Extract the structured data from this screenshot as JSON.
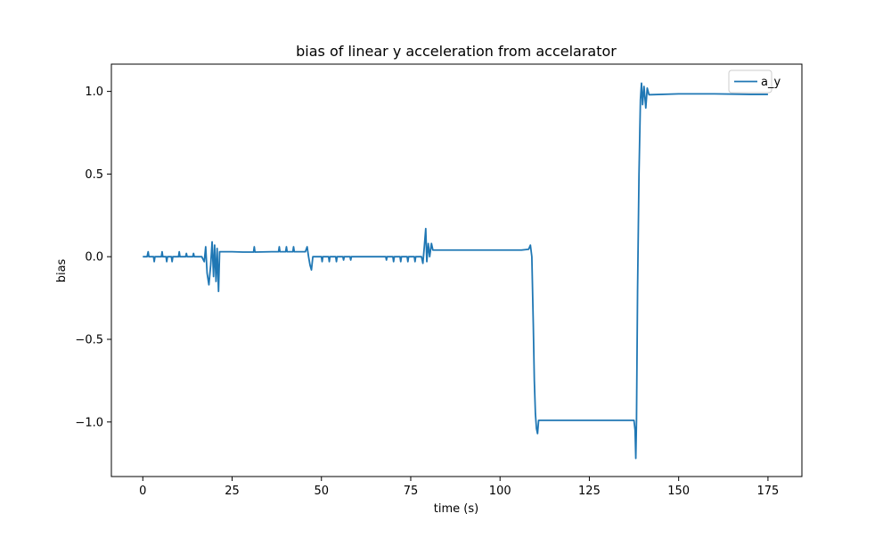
{
  "chart_data": {
    "type": "line",
    "title": "bias of linear y acceleration from accelarator",
    "xlabel": "time (s)",
    "ylabel": "bias",
    "xlim": [
      -8.8,
      184.5
    ],
    "ylim": [
      -1.33,
      1.165
    ],
    "x_ticks": [
      0,
      25,
      50,
      75,
      100,
      125,
      150,
      175
    ],
    "x_tick_labels": [
      "0",
      "25",
      "50",
      "75",
      "100",
      "125",
      "150",
      "175"
    ],
    "y_ticks": [
      -1.0,
      -0.5,
      0.0,
      0.5,
      1.0
    ],
    "y_tick_labels": [
      "−1.0",
      "−0.5",
      "0.0",
      "0.5",
      "1.0"
    ],
    "grid": false,
    "legend_position": "upper right",
    "series": [
      {
        "name": "a_y",
        "color": "#1f77b4",
        "points": [
          [
            0.0,
            0.0
          ],
          [
            1.2,
            0.0
          ],
          [
            1.5,
            0.03
          ],
          [
            1.7,
            0.0
          ],
          [
            3.0,
            0.0
          ],
          [
            3.2,
            -0.03
          ],
          [
            3.4,
            0.0
          ],
          [
            5.2,
            0.0
          ],
          [
            5.4,
            0.03
          ],
          [
            5.6,
            0.0
          ],
          [
            6.5,
            0.0
          ],
          [
            6.7,
            -0.03
          ],
          [
            6.9,
            0.0
          ],
          [
            8.0,
            0.0
          ],
          [
            8.2,
            -0.03
          ],
          [
            8.4,
            0.0
          ],
          [
            10.0,
            0.0
          ],
          [
            10.2,
            0.03
          ],
          [
            10.4,
            0.0
          ],
          [
            12.0,
            0.0
          ],
          [
            12.2,
            0.02
          ],
          [
            12.4,
            0.0
          ],
          [
            14.0,
            0.0
          ],
          [
            14.2,
            0.02
          ],
          [
            14.4,
            0.0
          ],
          [
            16.5,
            0.0
          ],
          [
            17.2,
            -0.03
          ],
          [
            17.6,
            0.06
          ],
          [
            18.0,
            -0.1
          ],
          [
            18.5,
            -0.17
          ],
          [
            19.0,
            -0.05
          ],
          [
            19.4,
            0.09
          ],
          [
            19.8,
            -0.12
          ],
          [
            20.1,
            0.07
          ],
          [
            20.5,
            -0.15
          ],
          [
            20.8,
            0.05
          ],
          [
            21.2,
            -0.21
          ],
          [
            21.5,
            0.03
          ],
          [
            22.0,
            0.03
          ],
          [
            25.0,
            0.03
          ],
          [
            28.0,
            0.028
          ],
          [
            31.0,
            0.028
          ],
          [
            31.2,
            0.06
          ],
          [
            31.4,
            0.028
          ],
          [
            36.0,
            0.03
          ],
          [
            38.0,
            0.03
          ],
          [
            38.2,
            0.06
          ],
          [
            38.4,
            0.03
          ],
          [
            40.0,
            0.03
          ],
          [
            40.2,
            0.06
          ],
          [
            40.4,
            0.03
          ],
          [
            42.0,
            0.03
          ],
          [
            42.2,
            0.06
          ],
          [
            42.4,
            0.03
          ],
          [
            45.5,
            0.03
          ],
          [
            46.0,
            0.06
          ],
          [
            46.4,
            0.0
          ],
          [
            46.8,
            -0.05
          ],
          [
            47.2,
            -0.08
          ],
          [
            47.6,
            0.0
          ],
          [
            48.0,
            0.0
          ],
          [
            50.0,
            0.0
          ],
          [
            50.2,
            -0.03
          ],
          [
            50.4,
            0.0
          ],
          [
            52.0,
            0.0
          ],
          [
            52.2,
            -0.03
          ],
          [
            52.4,
            0.0
          ],
          [
            54.0,
            0.0
          ],
          [
            54.2,
            -0.03
          ],
          [
            54.4,
            0.0
          ],
          [
            56.0,
            0.0
          ],
          [
            56.2,
            -0.02
          ],
          [
            56.4,
            0.0
          ],
          [
            58.0,
            0.0
          ],
          [
            58.2,
            -0.02
          ],
          [
            58.4,
            0.0
          ],
          [
            60.0,
            0.0
          ],
          [
            68.0,
            0.0
          ],
          [
            68.2,
            -0.02
          ],
          [
            68.4,
            0.0
          ],
          [
            70.0,
            0.0
          ],
          [
            70.2,
            -0.03
          ],
          [
            70.4,
            0.0
          ],
          [
            72.0,
            0.0
          ],
          [
            72.2,
            -0.03
          ],
          [
            72.4,
            0.0
          ],
          [
            74.0,
            0.0
          ],
          [
            74.2,
            -0.03
          ],
          [
            74.4,
            0.0
          ],
          [
            76.0,
            0.0
          ],
          [
            76.2,
            -0.03
          ],
          [
            76.4,
            0.0
          ],
          [
            78.0,
            0.0
          ],
          [
            78.4,
            -0.04
          ],
          [
            78.8,
            0.06
          ],
          [
            79.2,
            0.17
          ],
          [
            79.5,
            -0.03
          ],
          [
            79.9,
            0.08
          ],
          [
            80.3,
            0.0
          ],
          [
            80.8,
            0.08
          ],
          [
            81.2,
            0.04
          ],
          [
            82.0,
            0.04
          ],
          [
            90.0,
            0.04
          ],
          [
            100.0,
            0.04
          ],
          [
            106.0,
            0.04
          ],
          [
            108.0,
            0.045
          ],
          [
            108.5,
            0.07
          ],
          [
            108.9,
            0.0
          ],
          [
            109.3,
            -0.4
          ],
          [
            109.6,
            -0.75
          ],
          [
            109.9,
            -0.95
          ],
          [
            110.2,
            -1.04
          ],
          [
            110.5,
            -1.07
          ],
          [
            110.8,
            -0.99
          ],
          [
            112.0,
            -0.99
          ],
          [
            120.0,
            -0.99
          ],
          [
            130.0,
            -0.99
          ],
          [
            137.5,
            -0.99
          ],
          [
            137.8,
            -1.05
          ],
          [
            138.0,
            -1.22
          ],
          [
            138.2,
            -0.99
          ],
          [
            138.5,
            -0.2
          ],
          [
            138.9,
            0.5
          ],
          [
            139.3,
            0.95
          ],
          [
            139.6,
            1.05
          ],
          [
            139.9,
            0.92
          ],
          [
            140.3,
            1.03
          ],
          [
            140.8,
            0.9
          ],
          [
            141.2,
            1.02
          ],
          [
            141.7,
            0.98
          ],
          [
            142.3,
            0.98
          ],
          [
            150.0,
            0.985
          ],
          [
            160.0,
            0.985
          ],
          [
            170.0,
            0.982
          ],
          [
            175.0,
            0.982
          ]
        ]
      }
    ]
  }
}
